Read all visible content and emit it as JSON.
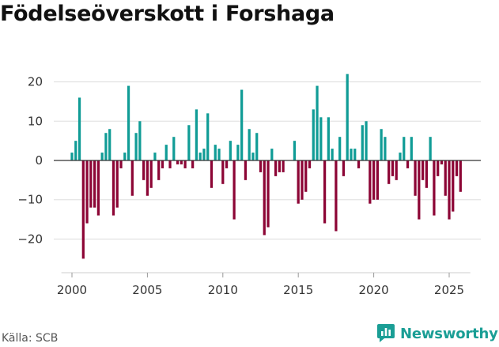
{
  "title": "Födelseöverskott i Forshaga",
  "source": "Källa: SCB",
  "brand": "Newsworthy",
  "colors": {
    "positive": "#109c96",
    "negative": "#8c0535",
    "grid": "#dddddd",
    "zero_line": "#333333",
    "brand": "#1a9e95"
  },
  "chart_data": {
    "type": "bar",
    "title": "Födelseöverskott i Forshaga",
    "xlabel": "",
    "ylabel": "",
    "x_ticks": [
      2000,
      2005,
      2010,
      2015,
      2020,
      2025
    ],
    "y_ticks": [
      20,
      10,
      0,
      -10,
      -20
    ],
    "y_tick_labels": [
      "20",
      "10",
      "0",
      "−10",
      "−20"
    ],
    "xlim": [
      1999.3,
      2026.4
    ],
    "ylim": [
      -30,
      25
    ],
    "bar_width_years": 0.17,
    "start": 2000.0,
    "step": 0.25,
    "frequency": "quarterly",
    "values": [
      2,
      5,
      16,
      -25,
      -16,
      -12,
      -12,
      -14,
      2,
      7,
      8,
      -14,
      -12,
      -2,
      2,
      19,
      -9,
      7,
      10,
      -5,
      -9,
      -7,
      2,
      -5,
      -2,
      4,
      -2,
      6,
      -1,
      -1,
      -2,
      9,
      -2,
      13,
      2,
      3,
      12,
      -7,
      4,
      3,
      -6,
      -2,
      5,
      -15,
      4,
      18,
      -5,
      8,
      2,
      7,
      -3,
      -19,
      -17,
      3,
      -4,
      -3,
      -3,
      0,
      0,
      5,
      -11,
      -10,
      -8,
      -2,
      13,
      19,
      11,
      -16,
      11,
      3,
      -18,
      6,
      -4,
      22,
      3,
      3,
      -2,
      9,
      10,
      -11,
      -10,
      -10,
      8,
      6,
      -6,
      -4,
      -5,
      2,
      6,
      -2,
      6,
      -9,
      -15,
      -5,
      -7,
      6,
      -14,
      -4,
      -1,
      -9,
      -15,
      -13,
      -4,
      -8
    ]
  }
}
